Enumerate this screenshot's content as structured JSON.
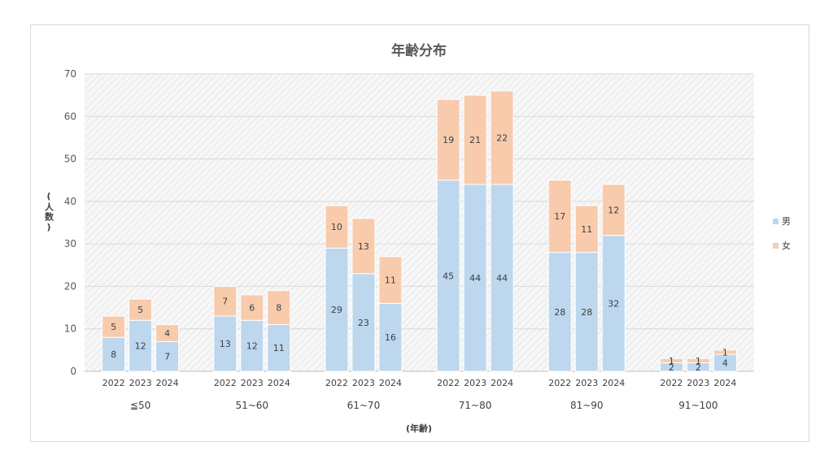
{
  "chart_data": {
    "type": "bar",
    "stacked": true,
    "title": "年齢分布",
    "xlabel": "(年齢)",
    "ylabel": "(人数)",
    "ylim": [
      0,
      70
    ],
    "yticks": [
      0,
      10,
      20,
      30,
      40,
      50,
      60,
      70
    ],
    "grid": true,
    "legend_position": "right",
    "groups": [
      "≦50",
      "51~60",
      "61~70",
      "71~80",
      "81~90",
      "91~100"
    ],
    "years": [
      "2022",
      "2023",
      "2024"
    ],
    "series": [
      {
        "name": "男",
        "color": "#bdd7ee",
        "values": [
          [
            8,
            12,
            7
          ],
          [
            13,
            12,
            11
          ],
          [
            29,
            23,
            16
          ],
          [
            45,
            44,
            44
          ],
          [
            28,
            28,
            32
          ],
          [
            2,
            2,
            4
          ]
        ]
      },
      {
        "name": "女",
        "color": "#f8cbad",
        "values": [
          [
            5,
            5,
            4
          ],
          [
            7,
            6,
            8
          ],
          [
            10,
            13,
            11
          ],
          [
            19,
            21,
            22
          ],
          [
            17,
            11,
            12
          ],
          [
            1,
            1,
            1
          ]
        ]
      }
    ]
  }
}
